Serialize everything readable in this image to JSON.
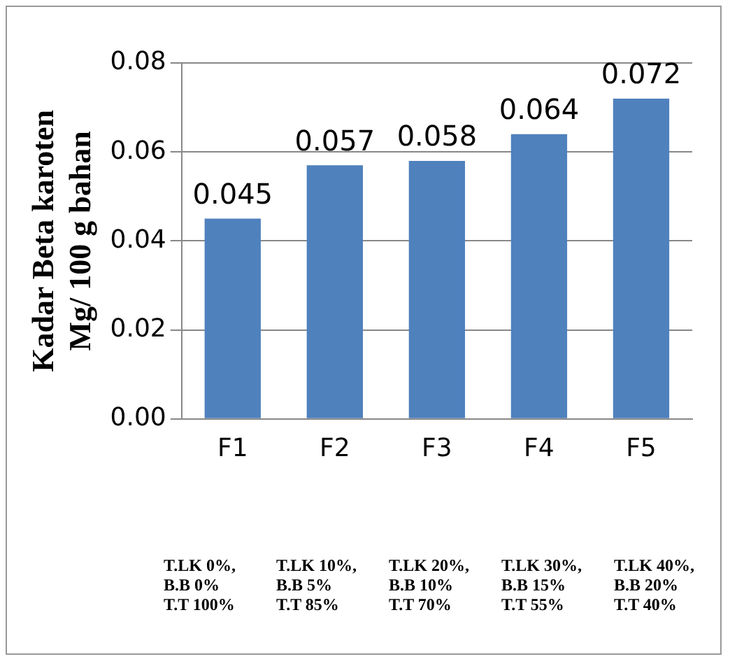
{
  "chart_data": {
    "type": "bar",
    "ylabel": "Kadar Beta karoten\nMg/ 100 g bahan",
    "categories": [
      "F1",
      "F2",
      "F3",
      "F4",
      "F5"
    ],
    "values": [
      0.045,
      0.057,
      0.058,
      0.064,
      0.072
    ],
    "color": "#4f81bd",
    "ylim": [
      0,
      0.08
    ],
    "yticks": [
      {
        "value": 0,
        "label": "0.00"
      },
      {
        "value": 0.02,
        "label": "0.02"
      },
      {
        "value": 0.04,
        "label": "0.04"
      },
      {
        "value": 0.06,
        "label": "0.06"
      },
      {
        "value": 0.08,
        "label": "0.08"
      }
    ],
    "grid": "y",
    "data_labels": true,
    "annotations": [
      "T.LK 0%,\nB.B 0%\nT.T 100%",
      "T.LK 10%,\nB.B 5%\nT.T 85%",
      "T.LK 20%,\nB.B 10%\nT.T 70%",
      "T.LK 30%,\nB.B 15%\nT.T 55%",
      "T.LK 40%,\nB.B 20%\nT.T 40%"
    ]
  }
}
